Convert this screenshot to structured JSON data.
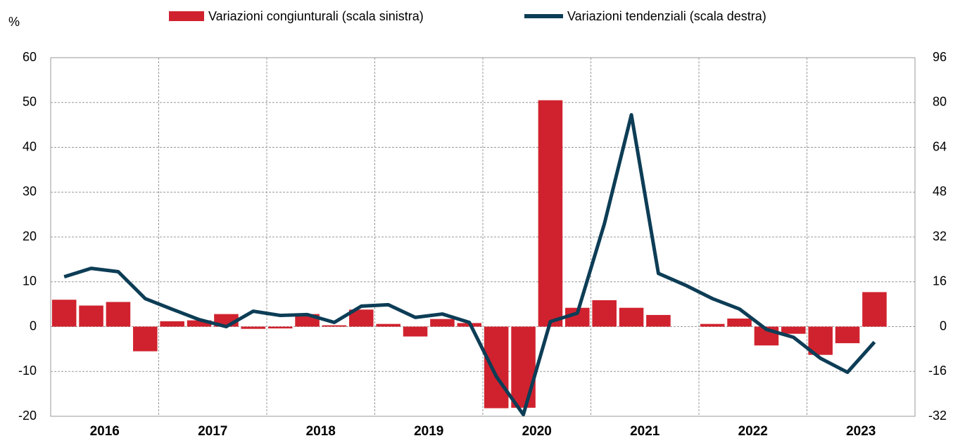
{
  "chart_data": {
    "type": "bar_line",
    "y_unit": "%",
    "categories": [
      null,
      null,
      null,
      null,
      null,
      null,
      null,
      null,
      null,
      null,
      null,
      null,
      null,
      null,
      null,
      null,
      null,
      null,
      null,
      null,
      null,
      null,
      null,
      null,
      null,
      null,
      null,
      null,
      null,
      null,
      null,
      null
    ],
    "year_labels": [
      "2016",
      "2017",
      "2018",
      "2019",
      "2020",
      "2021",
      "2022",
      "2023"
    ],
    "series": [
      {
        "name": "Variazioni congiunturali (scala sinistra)",
        "type": "bar",
        "color": "#d0222e",
        "values": [
          6,
          4.7,
          5.5,
          -5.5,
          1.2,
          1.4,
          2.8,
          -0.5,
          -0.4,
          2.8,
          0.3,
          3.8,
          0.6,
          -2.2,
          1.7,
          0.8,
          -18.2,
          -18.1,
          50.5,
          4.2,
          5.9,
          4.2,
          2.6,
          0,
          0.6,
          1.8,
          -4.2,
          -1.6,
          -6.3,
          -3.7,
          7.7,
          null
        ]
      },
      {
        "name": "Variazioni tendenziali (scala destra)",
        "type": "line",
        "axis": "y2",
        "color": "#0d3d56",
        "values": [
          17.8,
          20.8,
          19.6,
          10,
          6.2,
          2.5,
          0,
          5.5,
          4,
          4.3,
          1.5,
          7.3,
          7.8,
          3.3,
          4.5,
          1.5,
          -17.8,
          -31.4,
          1.8,
          4.8,
          36.7,
          75.6,
          19,
          14.8,
          10,
          6.3,
          -1,
          -3.8,
          -11.3,
          -16.3,
          -5.5,
          null
        ]
      }
    ],
    "ylim": [
      -20,
      60
    ],
    "yticks": [
      -20,
      -10,
      0,
      10,
      20,
      30,
      40,
      50,
      60
    ],
    "y2lim": [
      -32,
      96
    ],
    "y2ticks": [
      -32,
      -16,
      0,
      16,
      32,
      48,
      64,
      80,
      96
    ],
    "grid": true
  }
}
